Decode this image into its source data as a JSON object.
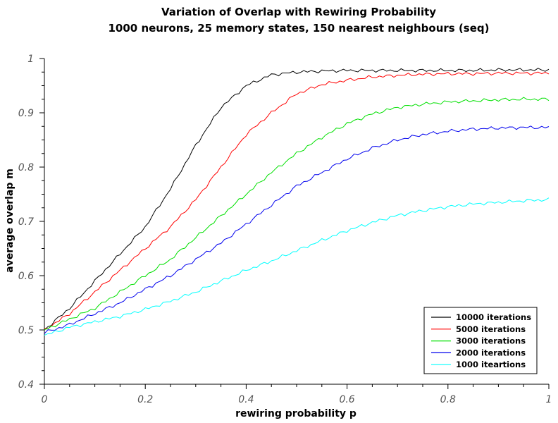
{
  "chart_data": {
    "type": "line",
    "title": "Variation of Overlap with Rewiring Probability",
    "subtitle": "1000 neurons, 25 memory states, 150 nearest neighbours (seq)",
    "xlabel": "rewiring probability p",
    "ylabel": "average overlap m",
    "xlim": [
      0,
      1
    ],
    "ylim": [
      0.4,
      1
    ],
    "x_ticks": [
      0,
      0.2,
      0.4,
      0.6,
      0.8,
      1
    ],
    "x_tick_labels": [
      "0",
      "0.2",
      "0.4",
      "0.6",
      "0.8",
      "1"
    ],
    "y_ticks": [
      0.4,
      0.5,
      0.6,
      0.7,
      0.8,
      0.9,
      1
    ],
    "y_tick_labels": [
      "0.4",
      "0.5",
      "0.6",
      "0.7",
      "0.8",
      "0.9",
      "1"
    ],
    "grid": false,
    "legend_position": "bottom-right",
    "x": [
      0,
      0.05,
      0.1,
      0.15,
      0.2,
      0.25,
      0.3,
      0.35,
      0.4,
      0.45,
      0.5,
      0.55,
      0.6,
      0.65,
      0.7,
      0.75,
      0.8,
      0.85,
      0.9,
      0.95,
      1.0
    ],
    "series": [
      {
        "name": "10000 iterations",
        "color": "#000000",
        "values": [
          0.5,
          0.54,
          0.59,
          0.64,
          0.69,
          0.76,
          0.84,
          0.91,
          0.95,
          0.97,
          0.975,
          0.977,
          0.978,
          0.978,
          0.978,
          0.978,
          0.978,
          0.978,
          0.979,
          0.979,
          0.979
        ]
      },
      {
        "name": "5000 iterations",
        "color": "#ff0000",
        "values": [
          0.5,
          0.53,
          0.57,
          0.61,
          0.65,
          0.69,
          0.74,
          0.8,
          0.86,
          0.9,
          0.935,
          0.952,
          0.96,
          0.966,
          0.969,
          0.971,
          0.972,
          0.972,
          0.973,
          0.973,
          0.973
        ]
      },
      {
        "name": "3000 iterations",
        "color": "#00e000",
        "values": [
          0.5,
          0.52,
          0.54,
          0.57,
          0.6,
          0.63,
          0.67,
          0.71,
          0.75,
          0.79,
          0.825,
          0.855,
          0.88,
          0.898,
          0.91,
          0.916,
          0.92,
          0.922,
          0.924,
          0.925,
          0.925
        ]
      },
      {
        "name": "2000 iterations",
        "color": "#0000ee",
        "values": [
          0.495,
          0.51,
          0.53,
          0.55,
          0.575,
          0.6,
          0.63,
          0.66,
          0.695,
          0.73,
          0.765,
          0.79,
          0.815,
          0.835,
          0.85,
          0.86,
          0.866,
          0.87,
          0.872,
          0.873,
          0.873
        ]
      },
      {
        "name": "1000 iteartions",
        "color": "#00ffff",
        "values": [
          0.49,
          0.505,
          0.515,
          0.525,
          0.538,
          0.553,
          0.57,
          0.59,
          0.61,
          0.627,
          0.646,
          0.665,
          0.683,
          0.698,
          0.711,
          0.72,
          0.727,
          0.732,
          0.735,
          0.738,
          0.74
        ]
      }
    ]
  }
}
